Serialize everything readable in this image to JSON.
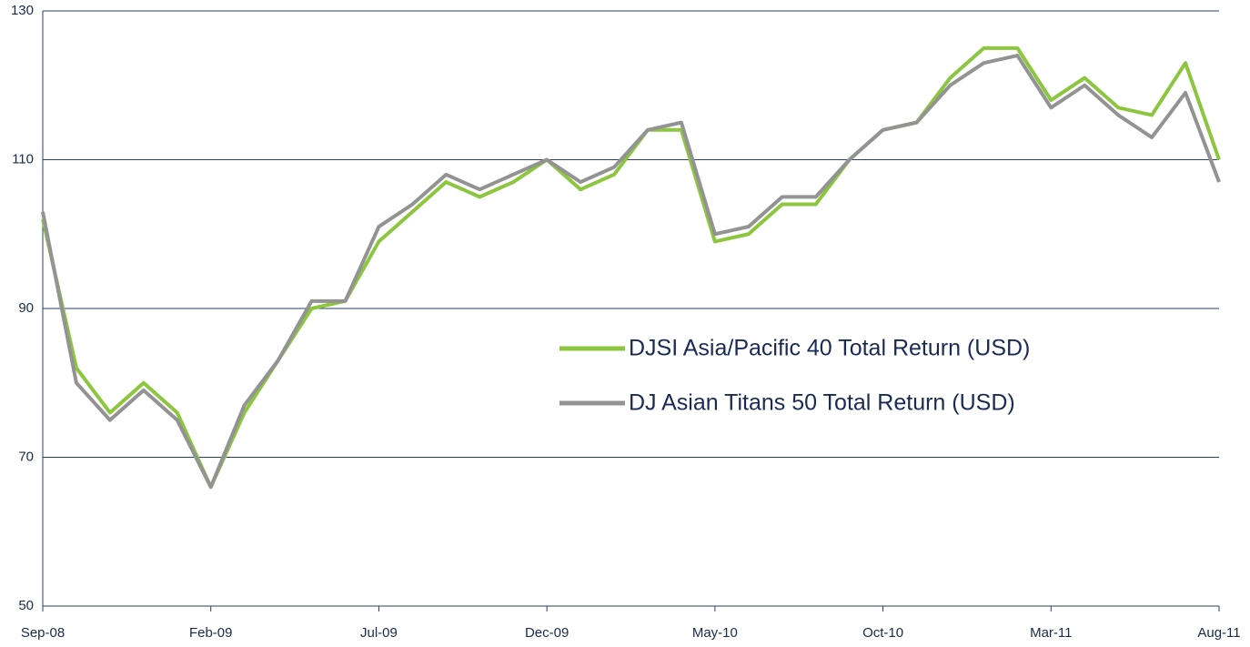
{
  "chart_data": {
    "type": "line",
    "categories": [
      "Sep-08",
      null,
      null,
      null,
      null,
      "Feb-09",
      null,
      null,
      null,
      null,
      "Jul-09",
      null,
      null,
      null,
      null,
      "Dec-09",
      null,
      null,
      null,
      null,
      "May-10",
      null,
      null,
      null,
      null,
      "Oct-10",
      null,
      null,
      null,
      null,
      "Mar-11",
      null,
      null,
      null,
      null,
      "Aug-11"
    ],
    "series": [
      {
        "name": "DJSI Asia/Pacific 40 Total Return (USD)",
        "color": "#8cc63f",
        "values": [
          102,
          82,
          76,
          80,
          76,
          66,
          76,
          83,
          90,
          91,
          99,
          103,
          107,
          105,
          107,
          110,
          106,
          108,
          114,
          114,
          99,
          100,
          104,
          104,
          110,
          114,
          115,
          121,
          125,
          125,
          118,
          121,
          117,
          116,
          123,
          110
        ]
      },
      {
        "name": "DJ Asian Titans 50 Total Return (USD)",
        "color": "#939393",
        "values": [
          103,
          80,
          75,
          79,
          75,
          66,
          77,
          83,
          91,
          91,
          101,
          104,
          108,
          106,
          108,
          110,
          107,
          109,
          114,
          115,
          100,
          101,
          105,
          105,
          110,
          114,
          115,
          120,
          123,
          124,
          117,
          120,
          116,
          113,
          119,
          107
        ]
      }
    ],
    "ylim": [
      50,
      130
    ],
    "yticks": [
      50,
      70,
      90,
      110,
      130
    ],
    "grid": true,
    "legend": "center-right"
  }
}
